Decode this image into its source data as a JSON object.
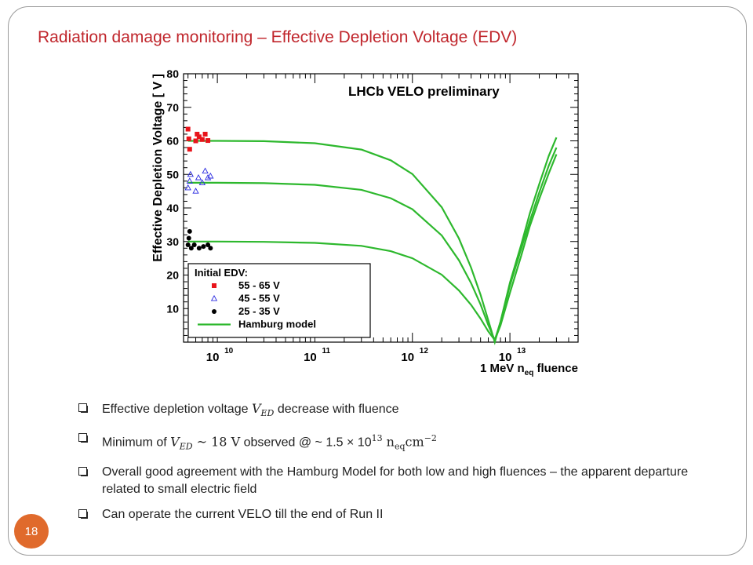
{
  "slide": {
    "title": "Radiation damage monitoring – Effective Depletion Voltage (EDV)",
    "page_number": "18",
    "accent_color": "#c0262c",
    "badge_color": "#e06a2c"
  },
  "bullets": {
    "b1": {
      "pre": "Effective depletion voltage ",
      "var": "V",
      "sub": "ED",
      "post": " decrease with fluence"
    },
    "b2": {
      "pre": "Minimum of ",
      "var": "V",
      "sub": "ED",
      "approx": " ~ 18 V",
      "obs": " observed @ ~ 1.5 × 10",
      "exp": "13",
      "unit_n": " n",
      "unit_sub": "eq",
      "unit_cm": "cm",
      "unit_exp": "−2"
    },
    "b3": "Overall good agreement with the Hamburg Model for both low and high fluences – the apparent departure related to small electric field",
    "b4": "Can operate the current VELO till the end of Run II"
  },
  "chart_data": {
    "type": "scatter",
    "title": "LHCb VELO preliminary",
    "xlabel_main": "1 MeV n",
    "xlabel_sub": "eq",
    "xlabel_tail": " fluence",
    "ylabel": "Effective Depletion Voltage   [ V ]",
    "x_scale": "log",
    "xlim": [
      4500000000.0,
      50000000000000.0
    ],
    "ylim": [
      0,
      80
    ],
    "yticks": [
      10,
      20,
      30,
      40,
      50,
      60,
      70,
      80
    ],
    "xticks": [
      {
        "value": 10000000000.0,
        "mant": "10",
        "exp": "10"
      },
      {
        "value": 100000000000.0,
        "mant": "10",
        "exp": "11"
      },
      {
        "value": 1000000000000.0,
        "mant": "10",
        "exp": "12"
      },
      {
        "value": 10000000000000.0,
        "mant": "10",
        "exp": "13"
      }
    ],
    "legend": {
      "position": "bottom-left",
      "title": "Initial EDV:",
      "entries": [
        "55 - 65 V",
        "45 - 55 V",
        "25 - 35 V",
        "Hamburg model"
      ]
    },
    "series": [
      {
        "name": "55 - 65 V",
        "marker": "square",
        "color": "#e8141b",
        "points": [
          [
            5000000000.0,
            63.5
          ],
          [
            5100000000.0,
            60.6
          ],
          [
            5200000000.0,
            57.5
          ],
          [
            6000000000.0,
            60
          ],
          [
            6200000000.0,
            62
          ],
          [
            6500000000.0,
            61.2
          ],
          [
            7000000000.0,
            60.4
          ],
          [
            7500000000.0,
            62
          ],
          [
            8000000000.0,
            60.1
          ]
        ]
      },
      {
        "name": "45 - 55 V",
        "marker": "triangle-open",
        "color": "#2a2ae0",
        "points": [
          [
            5000000000.0,
            46
          ],
          [
            5200000000.0,
            48
          ],
          [
            5300000000.0,
            50
          ],
          [
            6000000000.0,
            45
          ],
          [
            6400000000.0,
            49
          ],
          [
            7000000000.0,
            47.5
          ],
          [
            7500000000.0,
            51
          ],
          [
            8000000000.0,
            49
          ],
          [
            8500000000.0,
            49.5
          ]
        ]
      },
      {
        "name": "25 - 35 V",
        "marker": "circle",
        "color": "#000000",
        "points": [
          [
            5000000000.0,
            29
          ],
          [
            5100000000.0,
            31
          ],
          [
            5200000000.0,
            33
          ],
          [
            5400000000.0,
            28
          ],
          [
            5800000000.0,
            29
          ],
          [
            6500000000.0,
            28
          ],
          [
            7200000000.0,
            28.5
          ],
          [
            8000000000.0,
            29
          ],
          [
            8500000000.0,
            28
          ]
        ]
      },
      {
        "name": "Hamburg model",
        "type": "line",
        "color": "#2db82d",
        "curves": [
          [
            [
              5000000000.0,
              60
            ],
            [
              10000000000.0,
              60
            ],
            [
              30000000000.0,
              59.9
            ],
            [
              100000000000.0,
              59.3
            ],
            [
              300000000000.0,
              57.4
            ],
            [
              600000000000.0,
              54.2
            ],
            [
              1000000000000.0,
              50.1
            ],
            [
              2000000000000.0,
              40.2
            ],
            [
              3000000000000.0,
              30.9
            ],
            [
              4000000000000.0,
              22.2
            ],
            [
              5000000000000.0,
              14.1
            ],
            [
              6000000000000.0,
              6.5
            ],
            [
              7000000000000.0,
              0
            ],
            [
              8000000000000.0,
              6.1
            ],
            [
              10000000000000.0,
              17.7
            ],
            [
              13000000000000.0,
              28.9
            ],
            [
              16000000000000.0,
              38.4
            ],
            [
              20000000000000.0,
              47.1
            ],
            [
              25000000000000.0,
              55.5
            ],
            [
              30000000000000.0,
              61
            ]
          ],
          [
            [
              5000000000.0,
              47.5
            ],
            [
              10000000000.0,
              47.5
            ],
            [
              30000000000.0,
              47.4
            ],
            [
              100000000000.0,
              46.9
            ],
            [
              300000000000.0,
              45.4
            ],
            [
              600000000000.0,
              42.9
            ],
            [
              1000000000000.0,
              39.6
            ],
            [
              2000000000000.0,
              31.8
            ],
            [
              3000000000000.0,
              24.4
            ],
            [
              4000000000000.0,
              17.6
            ],
            [
              5000000000000.0,
              11.2
            ],
            [
              6000000000000.0,
              5.1
            ],
            [
              7000000000000.0,
              0.6
            ],
            [
              8000000000000.0,
              6.1
            ],
            [
              10000000000000.0,
              16.9
            ],
            [
              13000000000000.0,
              27.7
            ],
            [
              16000000000000.0,
              36.1
            ],
            [
              20000000000000.0,
              44.6
            ],
            [
              25000000000000.0,
              52.6
            ],
            [
              30000000000000.0,
              58
            ]
          ],
          [
            [
              5000000000.0,
              30
            ],
            [
              10000000000.0,
              30
            ],
            [
              30000000000.0,
              29.9
            ],
            [
              100000000000.0,
              29.6
            ],
            [
              300000000000.0,
              28.7
            ],
            [
              600000000000.0,
              27.1
            ],
            [
              1000000000000.0,
              25
            ],
            [
              2000000000000.0,
              20.1
            ],
            [
              3000000000000.0,
              15.4
            ],
            [
              4000000000000.0,
              11.1
            ],
            [
              5000000000000.0,
              7
            ],
            [
              6000000000000.0,
              3.2
            ],
            [
              7000000000000.0,
              0.6
            ],
            [
              8000000000000.0,
              5
            ],
            [
              10000000000000.0,
              14.7
            ],
            [
              13000000000000.0,
              25.6
            ],
            [
              16000000000000.0,
              34.6
            ],
            [
              20000000000000.0,
              42.7
            ],
            [
              25000000000000.0,
              50.3
            ],
            [
              30000000000000.0,
              56
            ]
          ]
        ]
      }
    ]
  }
}
